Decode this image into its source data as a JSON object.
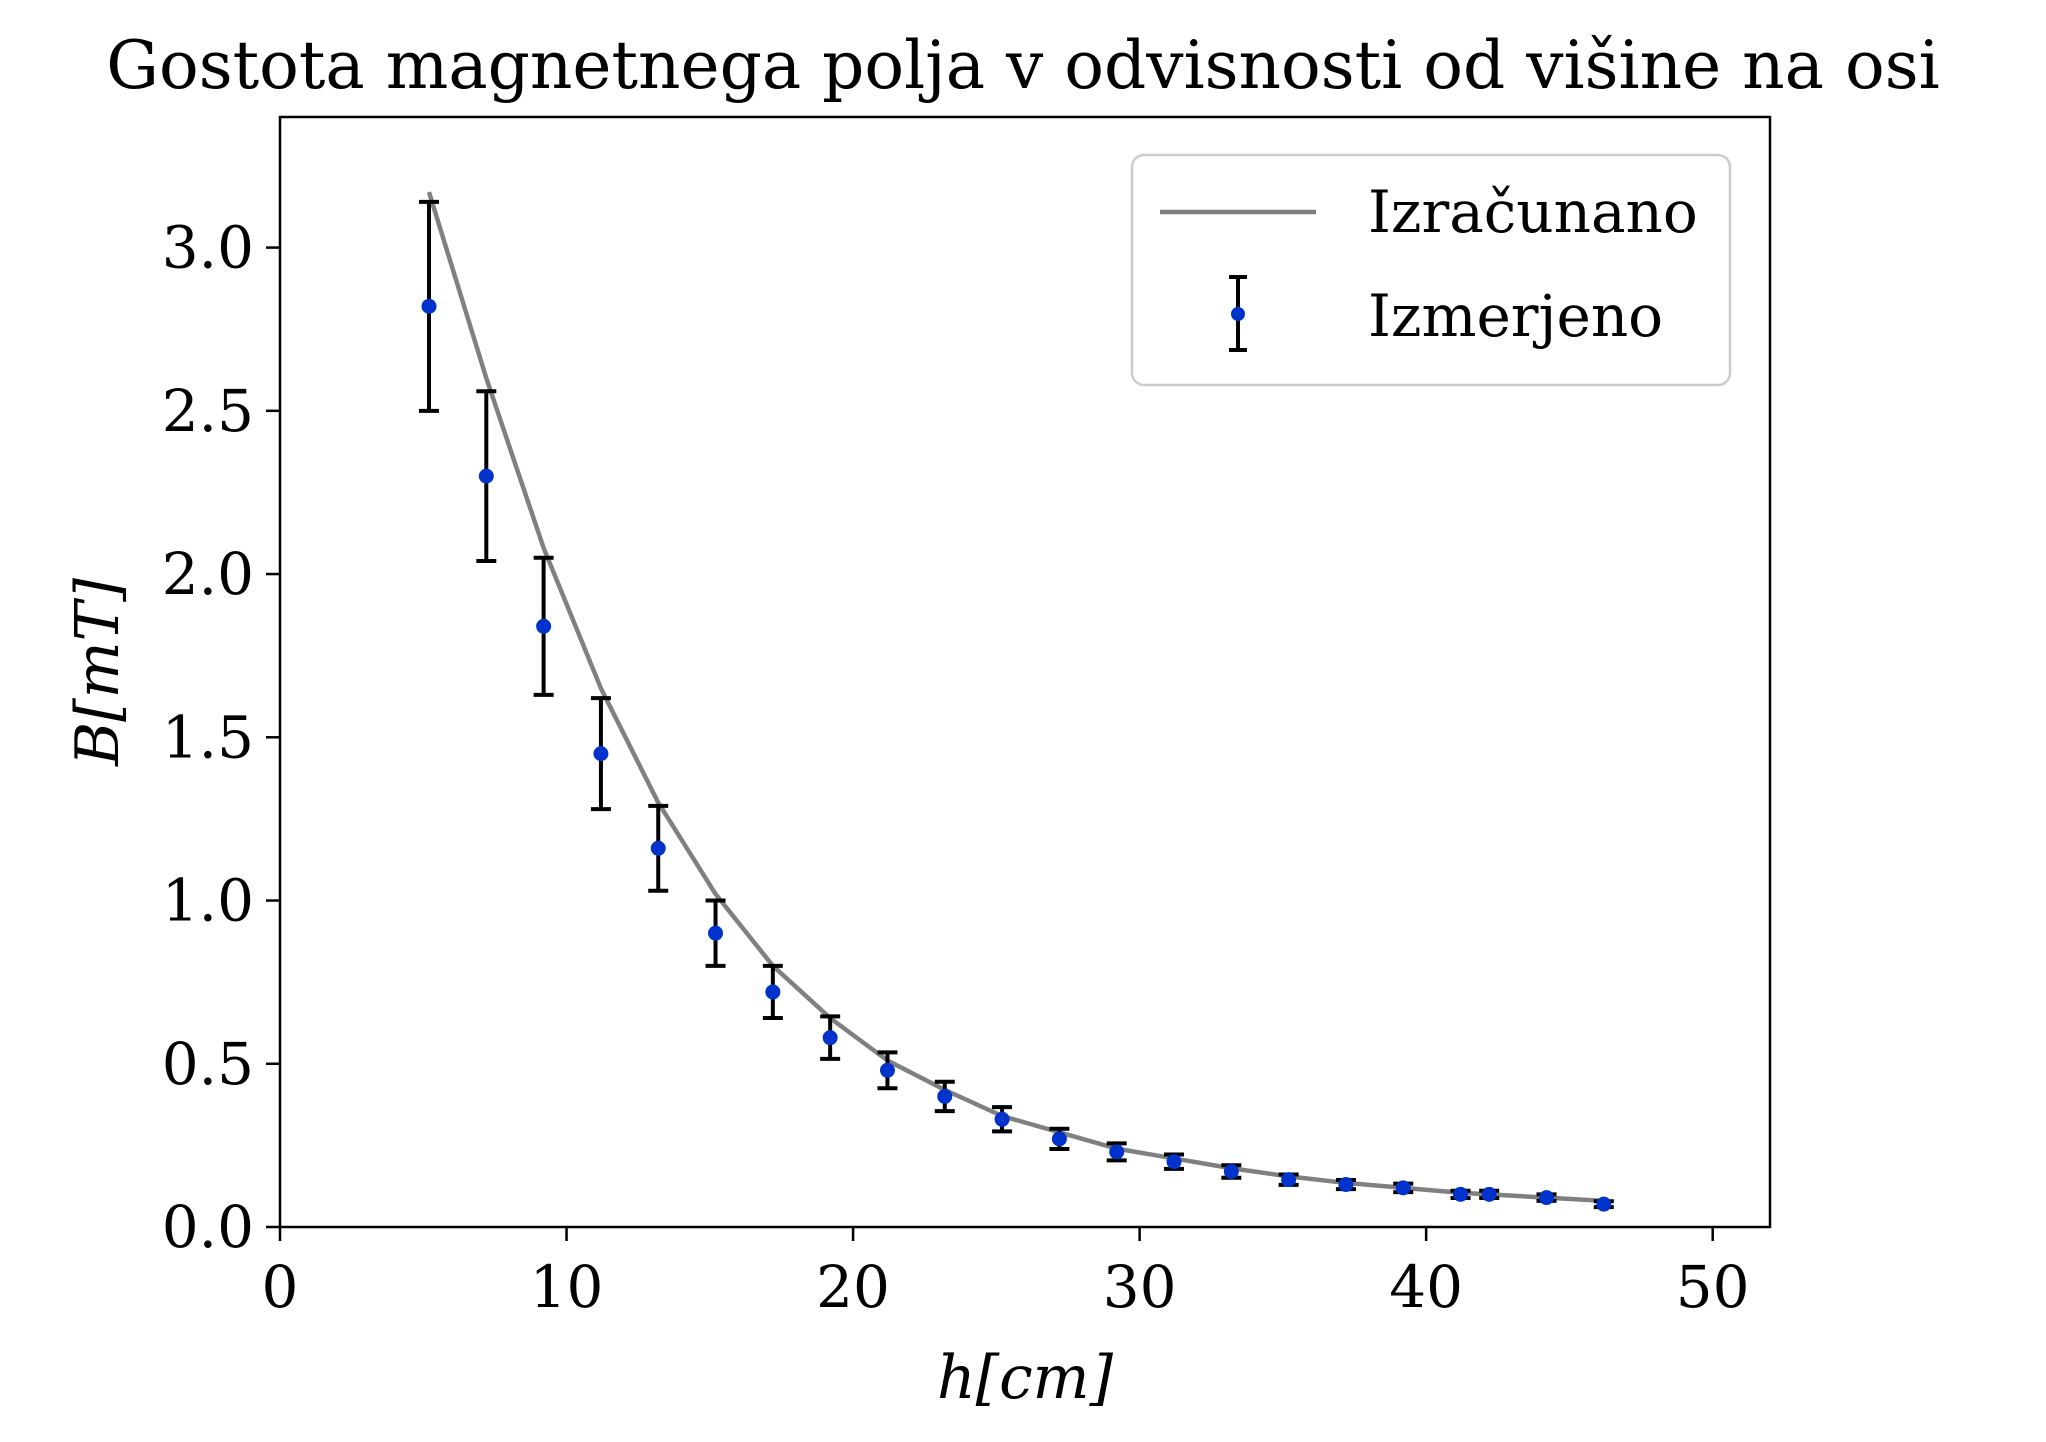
{
  "chart_data": {
    "type": "scatter",
    "title": "Gostota magnetnega polja v odvisnosti od višine na osi",
    "xlabel": "h[cm]",
    "ylabel": "B[mT]",
    "xlim": [
      0,
      52
    ],
    "ylim": [
      0,
      3.4
    ],
    "xticks": [
      0,
      10,
      20,
      30,
      40,
      50
    ],
    "yticks": [
      0.0,
      0.5,
      1.0,
      1.5,
      2.0,
      2.5,
      3.0
    ],
    "xtick_labels": [
      "0",
      "10",
      "20",
      "30",
      "40",
      "50"
    ],
    "ytick_labels": [
      "0.0",
      "0.5",
      "1.0",
      "1.5",
      "2.0",
      "2.5",
      "3.0"
    ],
    "grid": false,
    "legend_position": "top-right",
    "series": [
      {
        "name": "Izračunano",
        "kind": "line",
        "color": "#808080",
        "x": [
          5.2,
          7.2,
          9.2,
          11.2,
          13.2,
          15.2,
          17.2,
          19.2,
          21.2,
          23.2,
          25.2,
          27.2,
          29.2,
          31.2,
          33.2,
          35.2,
          37.2,
          39.2,
          41.2,
          42.2,
          44.2,
          46.2
        ],
        "y": [
          3.17,
          2.6,
          2.08,
          1.65,
          1.3,
          1.02,
          0.8,
          0.64,
          0.51,
          0.42,
          0.34,
          0.29,
          0.24,
          0.21,
          0.18,
          0.155,
          0.135,
          0.12,
          0.105,
          0.1,
          0.09,
          0.08
        ]
      },
      {
        "name": "Izmerjeno",
        "kind": "errorbar",
        "marker_color": "#0033cc",
        "error_color": "#000000",
        "x": [
          5.2,
          7.2,
          9.2,
          11.2,
          13.2,
          15.2,
          17.2,
          19.2,
          21.2,
          23.2,
          25.2,
          27.2,
          29.2,
          31.2,
          33.2,
          35.2,
          37.2,
          39.2,
          41.2,
          42.2,
          44.2,
          46.2
        ],
        "y": [
          2.82,
          2.3,
          1.84,
          1.45,
          1.16,
          0.9,
          0.72,
          0.58,
          0.48,
          0.4,
          0.33,
          0.27,
          0.23,
          0.2,
          0.17,
          0.145,
          0.13,
          0.12,
          0.1,
          0.1,
          0.09,
          0.07
        ],
        "yerr": [
          0.32,
          0.26,
          0.21,
          0.17,
          0.13,
          0.1,
          0.08,
          0.065,
          0.055,
          0.045,
          0.037,
          0.031,
          0.026,
          0.022,
          0.019,
          0.016,
          0.014,
          0.013,
          0.011,
          0.011,
          0.01,
          0.009
        ]
      }
    ]
  }
}
